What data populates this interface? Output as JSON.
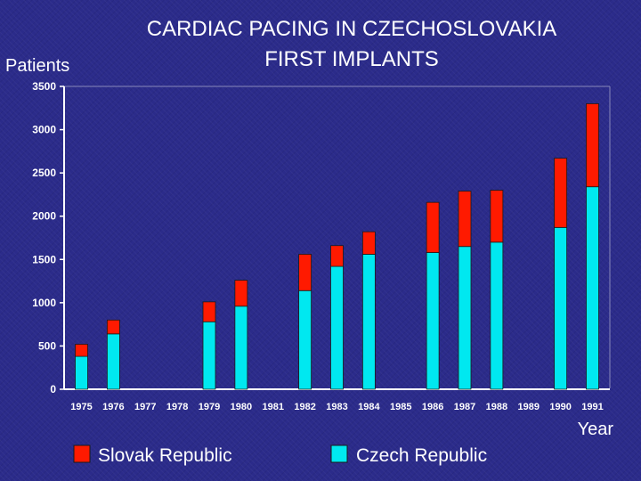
{
  "chart_data": {
    "type": "bar",
    "stacked": true,
    "title_lines": [
      "CARDIAC PACING IN CZECHOSLOVAKIA",
      "FIRST IMPLANTS"
    ],
    "ylabel": "Patients",
    "xlabel": "Year",
    "ylim": [
      0,
      3500
    ],
    "yticks": [
      "0",
      "500",
      "1000",
      "1500",
      "2000",
      "2500",
      "3000",
      "3500"
    ],
    "categories": [
      "1975",
      "1976",
      "1977",
      "1978",
      "1979",
      "1980",
      "1981",
      "1982",
      "1983",
      "1984",
      "1985",
      "1986",
      "1987",
      "1988",
      "1989",
      "1990",
      "1991"
    ],
    "series": [
      {
        "name": "Czech Republic",
        "color": "#00e8f0",
        "values": [
          380,
          640,
          0,
          0,
          780,
          960,
          0,
          1140,
          1420,
          1560,
          0,
          1580,
          1650,
          1700,
          0,
          1870,
          2340
        ]
      },
      {
        "name": "Slovak Republic",
        "color": "#ff1a00",
        "values": [
          140,
          160,
          0,
          0,
          230,
          300,
          0,
          420,
          240,
          260,
          0,
          580,
          640,
          600,
          0,
          800,
          960
        ]
      }
    ],
    "legend": [
      {
        "name": "Slovak Republic",
        "color": "#ff1a00"
      },
      {
        "name": "Czech Republic",
        "color": "#00e8f0"
      }
    ],
    "legend_position": "bottom",
    "grid": false
  },
  "colors": {
    "axis": "#ffffff",
    "bar_edge": "#1a1a1a"
  }
}
